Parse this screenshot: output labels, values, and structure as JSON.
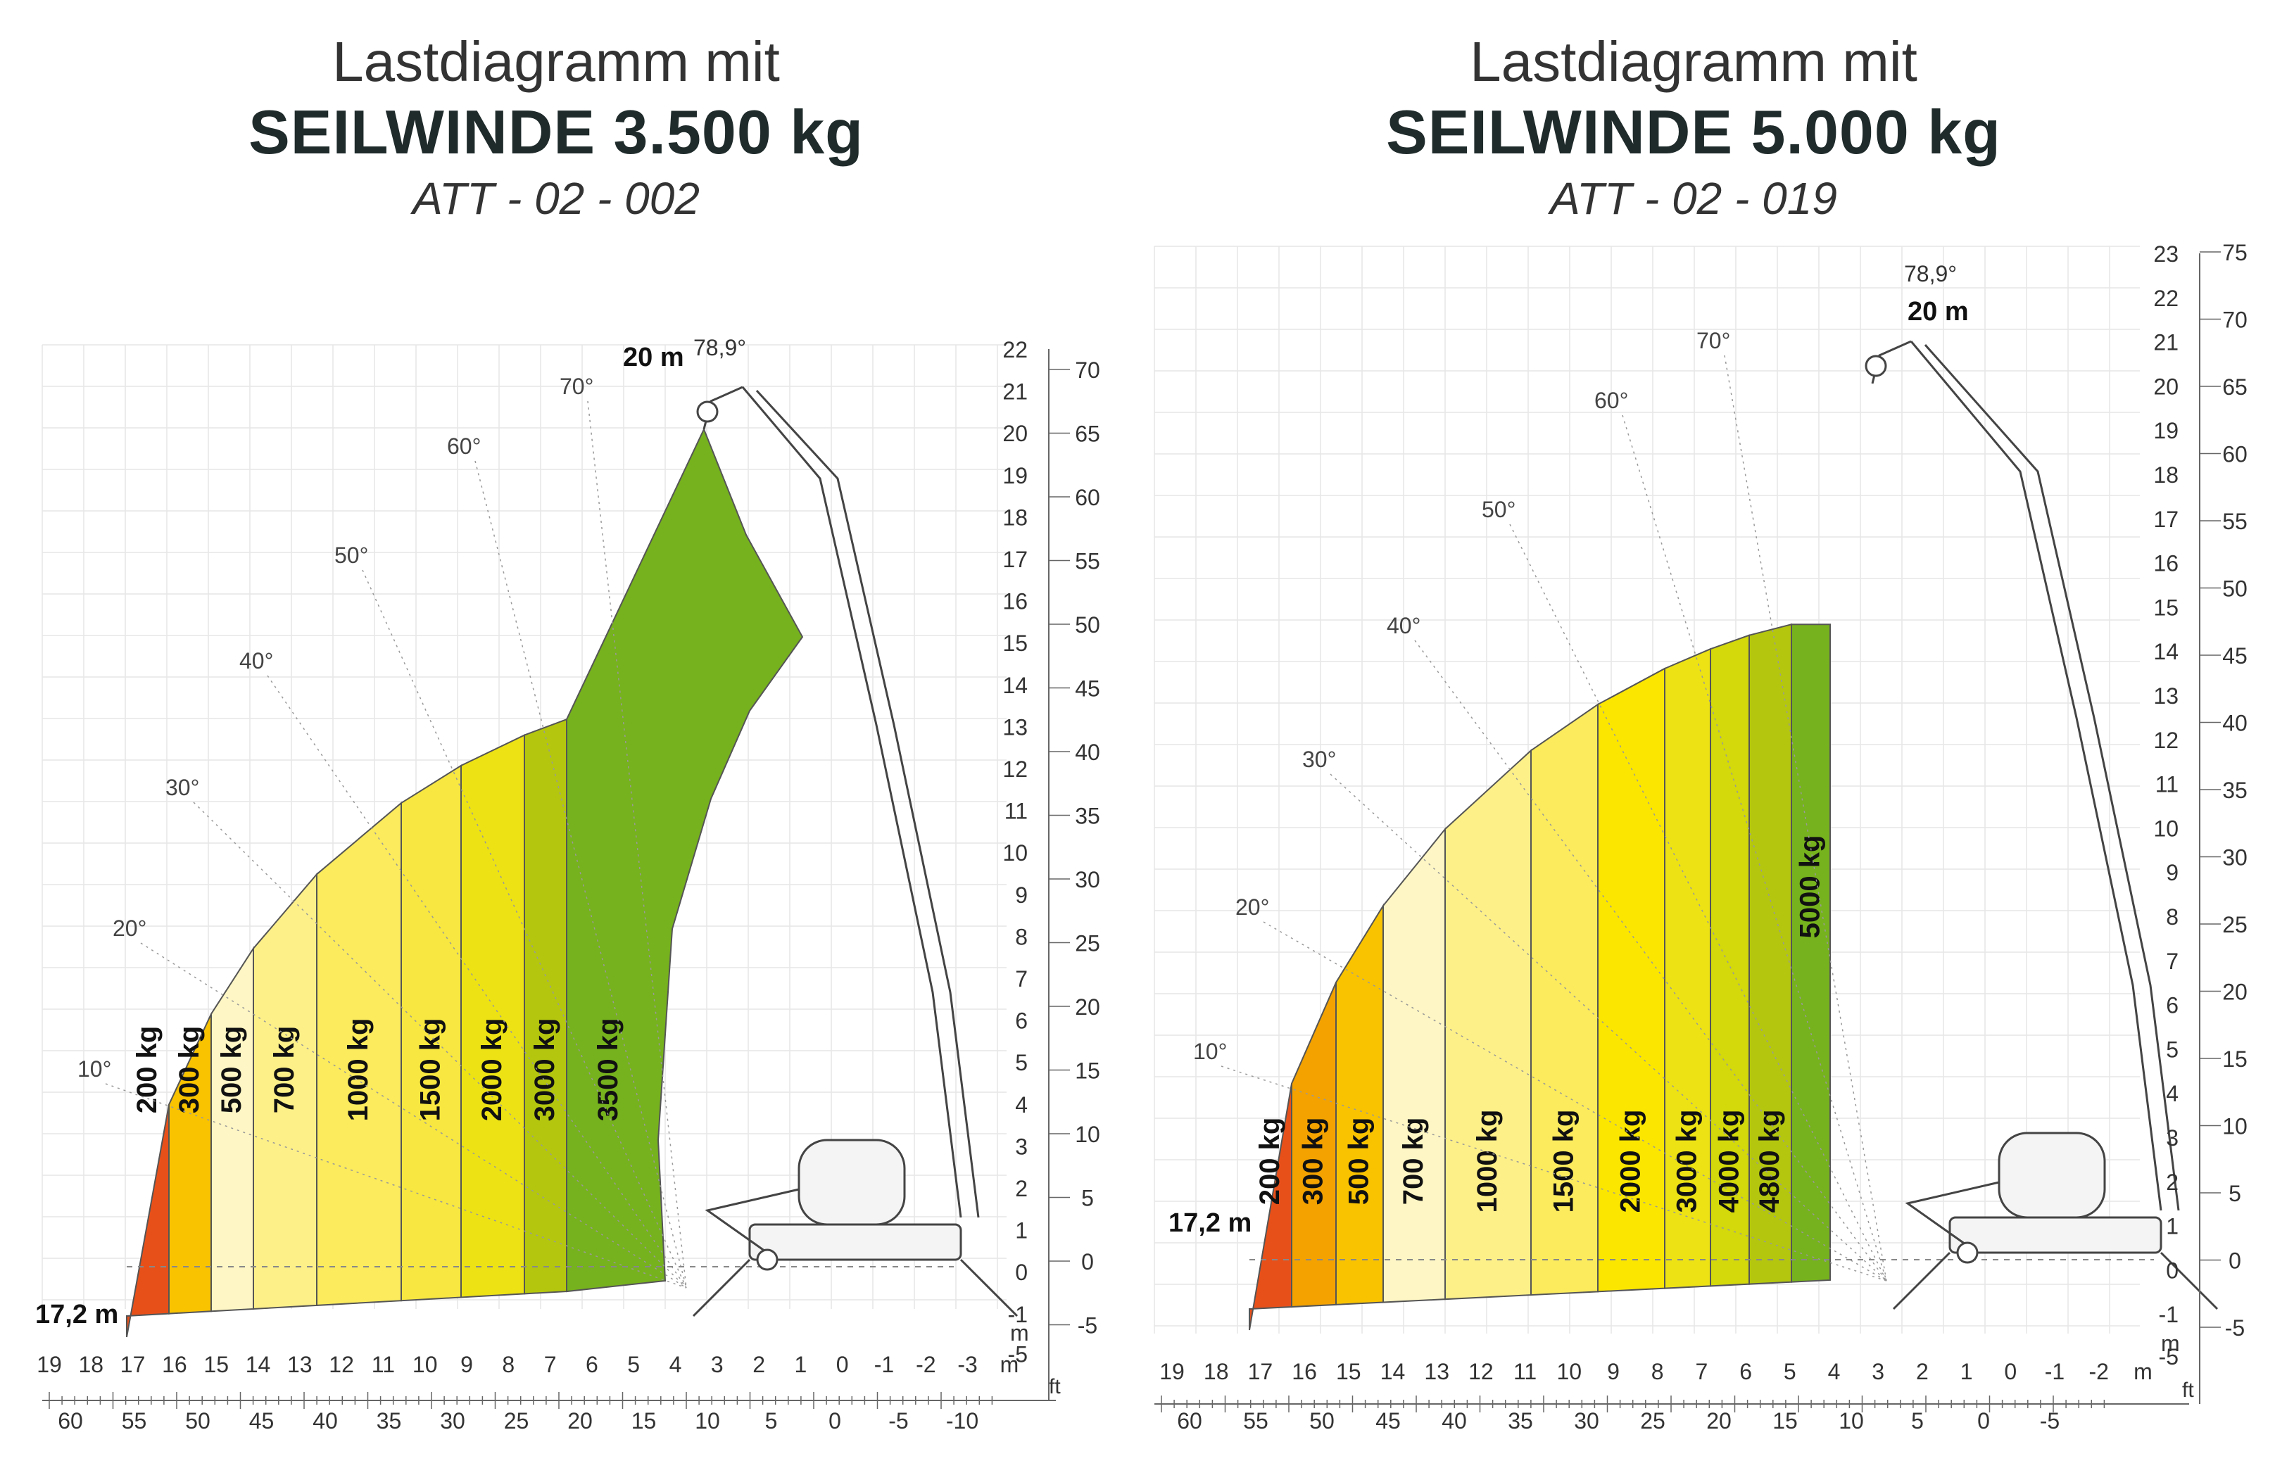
{
  "diagrams": [
    {
      "id": "left",
      "title_line1": "Lastdiagramm mit",
      "title_line2": "SEILWINDE 3.500 kg",
      "title_line3": "ATT - 02 - 002",
      "max_height_label": "20 m",
      "max_angle_label": "78,9°",
      "reach_label": "17,2 m",
      "angle_labels": [
        "70°",
        "60°",
        "50°",
        "40°",
        "30°",
        "20°",
        "10°"
      ],
      "zones": [
        {
          "label": "200 kg",
          "color": "#e8501a"
        },
        {
          "label": "300 kg",
          "color": "#f9c300"
        },
        {
          "label": "500 kg",
          "color": "#fef6c4"
        },
        {
          "label": "700 kg",
          "color": "#fdf089"
        },
        {
          "label": "1000 kg",
          "color": "#fbeb5d"
        },
        {
          "label": "1500 kg",
          "color": "#f7e740"
        },
        {
          "label": "2000 kg",
          "color": "#ede314"
        },
        {
          "label": "3000 kg",
          "color": "#b4c70e"
        },
        {
          "label": "3500 kg",
          "color": "#76b21d"
        }
      ],
      "x_m_ticks": [
        "19",
        "18",
        "17",
        "16",
        "15",
        "14",
        "13",
        "12",
        "11",
        "10",
        "9",
        "8",
        "7",
        "6",
        "5",
        "4",
        "3",
        "2",
        "1",
        "0",
        "-1",
        "-2",
        "-3"
      ],
      "x_m_unit": "m",
      "x_ft_ticks": [
        "60",
        "55",
        "50",
        "45",
        "40",
        "35",
        "30",
        "25",
        "20",
        "15",
        "10",
        "5",
        "0",
        "-5",
        "-10"
      ],
      "x_ft_unit": "ft",
      "y_m_ticks": [
        "22",
        "21",
        "20",
        "19",
        "18",
        "17",
        "16",
        "15",
        "14",
        "13",
        "12",
        "11",
        "10",
        "9",
        "8",
        "7",
        "6",
        "5",
        "4",
        "3",
        "2",
        "1",
        "0",
        "-1",
        "-5"
      ],
      "y_m_unit": "m",
      "y_ft_ticks": [
        "70",
        "65",
        "60",
        "55",
        "50",
        "45",
        "40",
        "35",
        "30",
        "25",
        "20",
        "15",
        "10",
        "5",
        "0",
        "-5"
      ]
    },
    {
      "id": "right",
      "title_line1": "Lastdiagramm mit",
      "title_line2": "SEILWINDE 5.000 kg",
      "title_line3": "ATT - 02 - 019",
      "max_height_label": "20 m",
      "max_angle_label": "78,9°",
      "reach_label": "17,2 m",
      "angle_labels": [
        "70°",
        "60°",
        "50°",
        "40°",
        "30°",
        "20°",
        "10°"
      ],
      "zones": [
        {
          "label": "200 kg",
          "color": "#e8501a"
        },
        {
          "label": "300 kg",
          "color": "#f3a200"
        },
        {
          "label": "500 kg",
          "color": "#f9c300"
        },
        {
          "label": "700 kg",
          "color": "#fef6c4"
        },
        {
          "label": "1000 kg",
          "color": "#fdf089"
        },
        {
          "label": "1500 kg",
          "color": "#fbeb5d"
        },
        {
          "label": "2000 kg",
          "color": "#fbe600"
        },
        {
          "label": "3000 kg",
          "color": "#ede314"
        },
        {
          "label": "4000 kg",
          "color": "#d3d90a"
        },
        {
          "label": "4800 kg",
          "color": "#b4c70e"
        },
        {
          "label": "5000 kg",
          "color": "#76b21d"
        }
      ],
      "x_m_ticks": [
        "19",
        "18",
        "17",
        "16",
        "15",
        "14",
        "13",
        "12",
        "11",
        "10",
        "9",
        "8",
        "7",
        "6",
        "5",
        "4",
        "3",
        "2",
        "1",
        "0",
        "-1",
        "-2"
      ],
      "x_m_unit": "m",
      "x_ft_ticks": [
        "60",
        "55",
        "50",
        "45",
        "40",
        "35",
        "30",
        "25",
        "20",
        "15",
        "10",
        "5",
        "0",
        "-5"
      ],
      "x_ft_unit": "ft",
      "y_m_ticks": [
        "23",
        "22",
        "21",
        "20",
        "19",
        "18",
        "17",
        "16",
        "15",
        "14",
        "13",
        "12",
        "11",
        "10",
        "9",
        "8",
        "7",
        "6",
        "5",
        "4",
        "3",
        "2",
        "1",
        "0",
        "-1",
        "-5"
      ],
      "y_m_unit": "m",
      "y_ft_ticks": [
        "75",
        "70",
        "65",
        "60",
        "55",
        "50",
        "45",
        "40",
        "35",
        "30",
        "25",
        "20",
        "15",
        "10",
        "5",
        "0",
        "-5"
      ]
    }
  ]
}
